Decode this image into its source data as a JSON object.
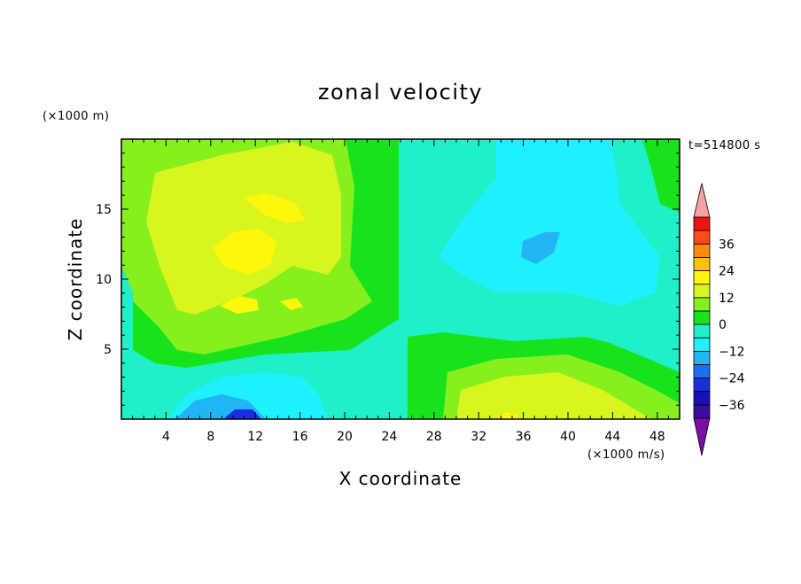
{
  "chart_data": {
    "type": "heatmap",
    "title": "zonal velocity",
    "xlabel": "X coordinate",
    "ylabel": "Z coordinate",
    "x_units": "(×1000 m/s)",
    "y_units": "(×1000 m)",
    "time_label": "t=514800 s",
    "xlim": [
      0,
      50
    ],
    "ylim": [
      0,
      20
    ],
    "xticks": [
      "4",
      "8",
      "12",
      "16",
      "20",
      "24",
      "28",
      "32",
      "36",
      "40",
      "44",
      "48"
    ],
    "yticks": [
      "5",
      "10",
      "15"
    ],
    "colorbar": {
      "tick_labels": [
        "36",
        "24",
        "12",
        "0",
        "-12",
        "-24",
        "-36"
      ],
      "levels": [
        -42,
        -36,
        -30,
        -24,
        -18,
        -12,
        -6,
        0,
        6,
        12,
        18,
        24,
        30,
        36,
        42
      ],
      "colors": [
        "#7a0fa8",
        "#3a0ca0",
        "#1a10b8",
        "#1a2ee0",
        "#1c6ff0",
        "#23b4f5",
        "#1ef0ff",
        "#1ef0c8",
        "#18e21c",
        "#86f01e",
        "#d8f51e",
        "#fff70a",
        "#ffc20a",
        "#ff8a0a",
        "#ff4a1a",
        "#f0140f",
        "#f5a2a2"
      ],
      "extend": "both"
    },
    "field_description_points": [
      {
        "x": 12,
        "z": 12,
        "value": 15
      },
      {
        "x": 13,
        "z": 15.5,
        "value": 14
      },
      {
        "x": 10,
        "z": 8,
        "value": 13
      },
      {
        "x": 37,
        "z": 12,
        "value": -16
      },
      {
        "x": 11,
        "z": 0.5,
        "value": -20
      },
      {
        "x": 34,
        "z": 0.5,
        "value": 14
      }
    ]
  }
}
